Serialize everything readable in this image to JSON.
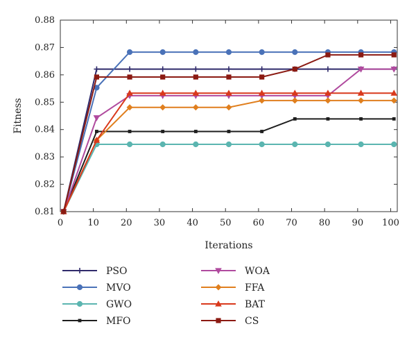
{
  "chart_data": {
    "type": "line",
    "xlabel": "Iterations",
    "ylabel": "Fitness",
    "xlim": [
      0,
      102
    ],
    "ylim": [
      0.81,
      0.88
    ],
    "xticks": [
      0,
      10,
      20,
      30,
      40,
      50,
      60,
      70,
      80,
      90,
      100
    ],
    "yticks": [
      0.81,
      0.82,
      0.83,
      0.84,
      0.85,
      0.86,
      0.87,
      0.88
    ],
    "grid": false,
    "legend_position": "bottom",
    "x": [
      1,
      11,
      21,
      31,
      41,
      51,
      61,
      71,
      81,
      91,
      101
    ],
    "series": [
      {
        "name": "PSO",
        "color": "#2f2a6b",
        "marker": "plus",
        "values": [
          0.81,
          0.8621,
          0.8621,
          0.8621,
          0.8621,
          0.8621,
          0.8621,
          0.8621,
          0.8621,
          0.8621,
          0.8621
        ]
      },
      {
        "name": "MVO",
        "color": "#4a72b8",
        "marker": "circle",
        "values": [
          0.81,
          0.8553,
          0.8683,
          0.8683,
          0.8683,
          0.8683,
          0.8683,
          0.8683,
          0.8683,
          0.8683,
          0.8683
        ]
      },
      {
        "name": "GWO",
        "color": "#5bb5b0",
        "marker": "circle",
        "values": [
          0.81,
          0.8346,
          0.8346,
          0.8346,
          0.8346,
          0.8346,
          0.8346,
          0.8346,
          0.8346,
          0.8346,
          0.8346
        ]
      },
      {
        "name": "MFO",
        "color": "#1e1e1e",
        "marker": "square-small",
        "values": [
          0.81,
          0.8393,
          0.8393,
          0.8393,
          0.8393,
          0.8393,
          0.8393,
          0.8439,
          0.8439,
          0.8439,
          0.8439
        ]
      },
      {
        "name": "WOA",
        "color": "#b04a9e",
        "marker": "triangle-down",
        "values": [
          0.81,
          0.8443,
          0.8524,
          0.8524,
          0.8524,
          0.8524,
          0.8524,
          0.8524,
          0.8524,
          0.8621,
          0.8621
        ]
      },
      {
        "name": "FFA",
        "color": "#e07f1e",
        "marker": "diamond",
        "values": [
          0.81,
          0.8361,
          0.8481,
          0.8481,
          0.8481,
          0.8481,
          0.8506,
          0.8506,
          0.8506,
          0.8506,
          0.8506
        ]
      },
      {
        "name": "BAT",
        "color": "#d9391c",
        "marker": "triangle-up",
        "values": [
          0.81,
          0.8361,
          0.8533,
          0.8533,
          0.8533,
          0.8533,
          0.8533,
          0.8533,
          0.8533,
          0.8533,
          0.8533
        ]
      },
      {
        "name": "CS",
        "color": "#8b1a12",
        "marker": "square",
        "values": [
          0.81,
          0.8592,
          0.8592,
          0.8592,
          0.8592,
          0.8592,
          0.8592,
          0.8621,
          0.8673,
          0.8673,
          0.8673
        ]
      }
    ]
  }
}
